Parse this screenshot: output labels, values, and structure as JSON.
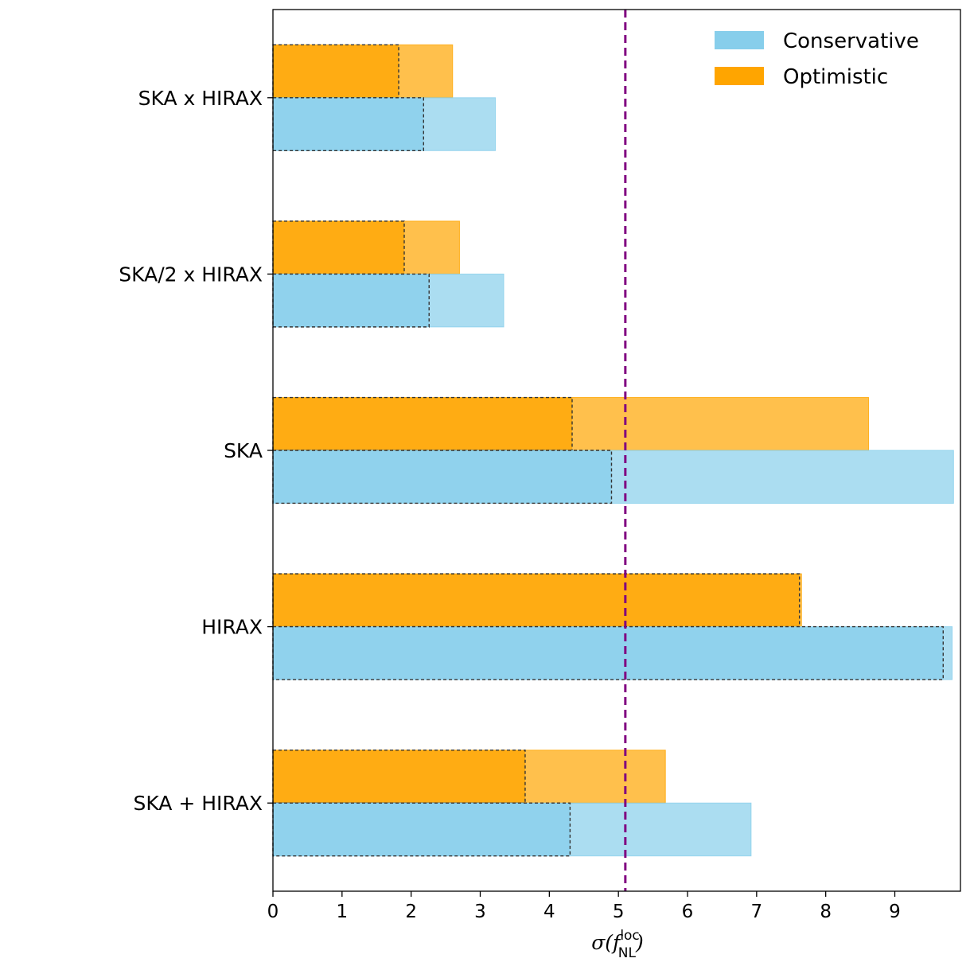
{
  "chart_data": {
    "type": "bar",
    "orientation": "horizontal",
    "categories": [
      "SKA x HIRAX",
      "SKA/2 x HIRAX",
      "SKA",
      "HIRAX",
      "SKA + HIRAX"
    ],
    "series": [
      {
        "name": "Conservative",
        "color": "#87CEEB",
        "values": [
          3.22,
          3.34,
          9.85,
          9.83,
          6.92
        ],
        "inner_values": [
          2.18,
          2.26,
          4.9,
          9.7,
          4.3
        ]
      },
      {
        "name": "Optimistic",
        "color": "#FFA500",
        "values": [
          2.6,
          2.7,
          8.62,
          7.65,
          5.68
        ],
        "inner_values": [
          1.82,
          1.9,
          4.33,
          7.62,
          3.65
        ]
      }
    ],
    "reference_line": {
      "value": 5.1,
      "color": "#800080",
      "style": "dashed"
    },
    "xlim": [
      0,
      9.95
    ],
    "xticks": [
      "0",
      "1",
      "2",
      "3",
      "4",
      "5",
      "6",
      "7",
      "8",
      "9"
    ],
    "xlabel": {
      "main": "σ(f",
      "sup": "loc",
      "sub": "NL",
      "close": ")"
    },
    "ylabel": "",
    "legend": {
      "position": "top-right",
      "entries": [
        "Conservative",
        "Optimistic"
      ]
    },
    "grid": false
  }
}
